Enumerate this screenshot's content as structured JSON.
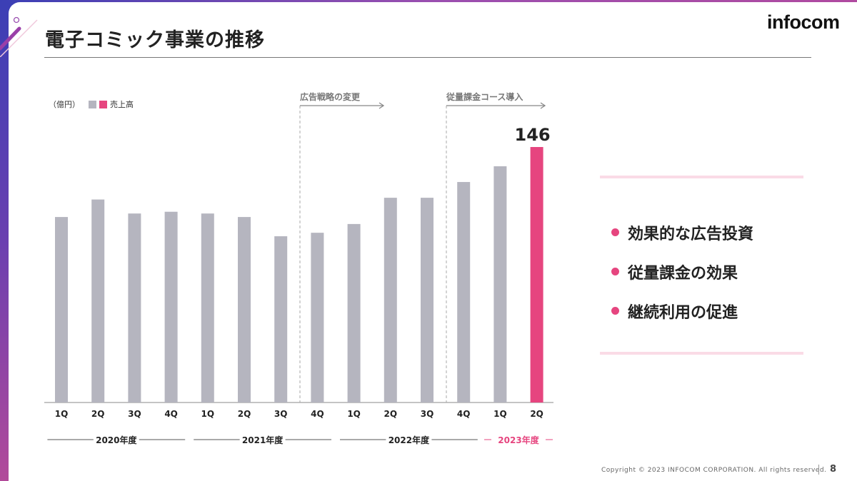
{
  "title": "電子コミック事業の推移",
  "logo": "infocom",
  "colors": {
    "bar": "#b5b5bf",
    "highlight": "#e6457f",
    "accent": "#e6457f"
  },
  "annotations": [
    "広告戦略の変更",
    "従量課金コース導入"
  ],
  "bullets": [
    "効果的な広告投資",
    "従量課金の効果",
    "継続利用の促進"
  ],
  "footer": "Copyright © 2023 INFOCOM CORPORATION. All rights reserved.",
  "page": "8",
  "chart_data": {
    "type": "bar",
    "unit": "（億円）",
    "legend": "売上高",
    "categories": [
      "1Q",
      "2Q",
      "3Q",
      "4Q",
      "1Q",
      "2Q",
      "3Q",
      "4Q",
      "1Q",
      "2Q",
      "3Q",
      "4Q",
      "1Q",
      "2Q"
    ],
    "groups": [
      {
        "label": "2020年度",
        "count": 4
      },
      {
        "label": "2021年度",
        "count": 4
      },
      {
        "label": "2022年度",
        "count": 4
      },
      {
        "label": "2023年度",
        "count": 2
      }
    ],
    "values": [
      106,
      116,
      108,
      109,
      108,
      106,
      95,
      97,
      102,
      117,
      117,
      126,
      135,
      146
    ],
    "data_labels": {
      "13": "146"
    },
    "highlight_index": 13,
    "ylim": [
      0,
      150
    ]
  }
}
